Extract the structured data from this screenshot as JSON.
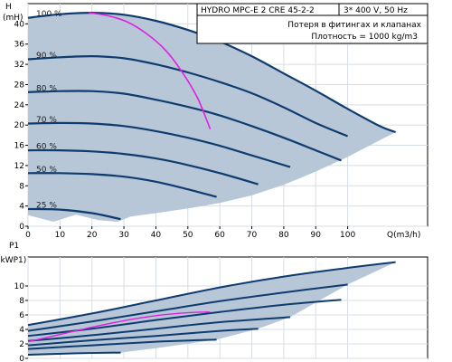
{
  "colors": {
    "area_fill": "#b7c7d8",
    "curve": "#0f3c6e",
    "operating": "#e020e0",
    "grid": "#d7dde4"
  },
  "info": {
    "title": "HYDRO MPC-E 2 CRE 45-2-2",
    "power_supply": "3* 400 V, 50 Hz",
    "note": "Потеря в фитингах и клапанах",
    "density": "Плотность = 1000 kg/m3"
  },
  "chart_data": [
    {
      "type": "line",
      "title": "",
      "ylabel_top": "H",
      "ylabel_bottom": "(mH)",
      "xlabel": "Q(m3/h)",
      "xlim": [
        0,
        125
      ],
      "ylim": [
        0,
        44
      ],
      "grid": true,
      "xticks": [
        0,
        10,
        20,
        30,
        40,
        50,
        60,
        70,
        80,
        90,
        100
      ],
      "yticks": [
        0,
        4,
        8,
        12,
        16,
        20,
        24,
        28,
        32,
        36,
        40
      ],
      "speed_labels": [
        "100 %",
        "90 %",
        "80 %",
        "70 %",
        "60 %",
        "50 %",
        "25 %"
      ],
      "series": [
        {
          "name": "100 %",
          "x": [
            0,
            10,
            20,
            30,
            40,
            50,
            60,
            70,
            80,
            90,
            100,
            110,
            115
          ],
          "y": [
            41.2,
            41.9,
            42.2,
            41.8,
            40.6,
            38.8,
            36.5,
            33.6,
            30.2,
            26.8,
            23.2,
            19.8,
            18.6
          ]
        },
        {
          "name": "90 %",
          "x": [
            0,
            10,
            20,
            30,
            40,
            50,
            60,
            70,
            80,
            90,
            100
          ],
          "y": [
            33.0,
            33.4,
            33.6,
            33.2,
            32.0,
            30.4,
            28.5,
            26.3,
            23.5,
            20.4,
            17.8
          ]
        },
        {
          "name": "80 %",
          "x": [
            0,
            10,
            20,
            30,
            40,
            50,
            60,
            70,
            80,
            90,
            98
          ],
          "y": [
            26.5,
            26.7,
            26.7,
            26.2,
            25.0,
            23.6,
            21.9,
            19.8,
            17.5,
            15.0,
            13.0
          ]
        },
        {
          "name": "70 %",
          "x": [
            0,
            10,
            20,
            30,
            40,
            50,
            60,
            70,
            82
          ],
          "y": [
            20.3,
            20.4,
            20.3,
            19.8,
            18.8,
            17.5,
            15.9,
            14.0,
            11.7
          ]
        },
        {
          "name": "60 %",
          "x": [
            0,
            10,
            20,
            30,
            40,
            50,
            60,
            72
          ],
          "y": [
            15.0,
            15.0,
            14.8,
            14.3,
            13.4,
            12.1,
            10.5,
            8.3
          ]
        },
        {
          "name": "50 %",
          "x": [
            0,
            10,
            20,
            30,
            40,
            50,
            59
          ],
          "y": [
            10.5,
            10.5,
            10.3,
            9.8,
            8.8,
            7.3,
            5.8
          ]
        },
        {
          "name": "25 %",
          "x": [
            0,
            10,
            20,
            29
          ],
          "y": [
            3.4,
            3.3,
            2.6,
            1.4
          ]
        }
      ],
      "operating_curve": {
        "x": [
          19,
          25,
          31,
          37,
          43,
          48,
          53,
          57
        ],
        "y": [
          42.2,
          41.6,
          40.4,
          38.1,
          34.8,
          30.7,
          25.4,
          19.2
        ]
      },
      "area_boundary": {
        "x": [
          0,
          20,
          30,
          40,
          50,
          60,
          70,
          80,
          90,
          100,
          110,
          115,
          115,
          110,
          100,
          90,
          80,
          70,
          60,
          50,
          40,
          32,
          30,
          28,
          22,
          15,
          10,
          8,
          0
        ],
        "y": [
          41.2,
          42.2,
          41.8,
          40.6,
          38.8,
          36.5,
          33.6,
          30.2,
          26.8,
          23.2,
          19.8,
          18.6,
          18.6,
          17.0,
          13.7,
          10.8,
          8.2,
          6.1,
          4.6,
          3.5,
          2.6,
          1.9,
          1.4,
          0.9,
          1.2,
          2.3,
          1.3,
          0.9,
          2.2
        ]
      }
    },
    {
      "type": "line",
      "title": "",
      "ylabel_top": "P1",
      "ylabel_bottom": "(kWP1)",
      "xlim": [
        0,
        125
      ],
      "ylim": [
        0,
        14
      ],
      "grid": true,
      "yticks": [
        0,
        2,
        4,
        6,
        8,
        10
      ],
      "series": [
        {
          "name": "100 %",
          "x": [
            0,
            20,
            40,
            60,
            80,
            100,
            115
          ],
          "y": [
            4.6,
            6.2,
            8.0,
            9.8,
            11.3,
            12.5,
            13.3
          ]
        },
        {
          "name": "90 %",
          "x": [
            0,
            20,
            40,
            60,
            80,
            100
          ],
          "y": [
            3.8,
            5.1,
            6.5,
            7.9,
            9.1,
            10.2
          ]
        },
        {
          "name": "80 %",
          "x": [
            0,
            20,
            40,
            60,
            80,
            98
          ],
          "y": [
            3.1,
            4.1,
            5.3,
            6.4,
            7.4,
            8.1
          ]
        },
        {
          "name": "70 %",
          "x": [
            0,
            20,
            40,
            60,
            82
          ],
          "y": [
            2.4,
            3.2,
            4.1,
            5.0,
            5.7
          ]
        },
        {
          "name": "60 %",
          "x": [
            0,
            20,
            40,
            60,
            72
          ],
          "y": [
            1.8,
            2.5,
            3.1,
            3.8,
            4.1
          ]
        },
        {
          "name": "50 %",
          "x": [
            0,
            20,
            40,
            59
          ],
          "y": [
            1.3,
            1.8,
            2.3,
            2.6
          ]
        },
        {
          "name": "25 %",
          "x": [
            0,
            15,
            29
          ],
          "y": [
            0.5,
            0.7,
            0.8
          ]
        }
      ],
      "operating_curve": {
        "x": [
          0,
          10,
          20,
          30,
          40,
          50,
          57
        ],
        "y": [
          2.3,
          3.3,
          4.3,
          5.2,
          5.9,
          6.3,
          6.4
        ]
      },
      "area_boundary": {
        "x": [
          0,
          20,
          40,
          60,
          80,
          100,
          115,
          115,
          100,
          82,
          72,
          59,
          40,
          29,
          15,
          0
        ],
        "y": [
          4.6,
          6.2,
          8.0,
          9.8,
          11.3,
          12.5,
          13.3,
          13.3,
          10.2,
          5.7,
          4.1,
          2.6,
          1.4,
          0.8,
          0.7,
          0.5
        ]
      }
    }
  ]
}
